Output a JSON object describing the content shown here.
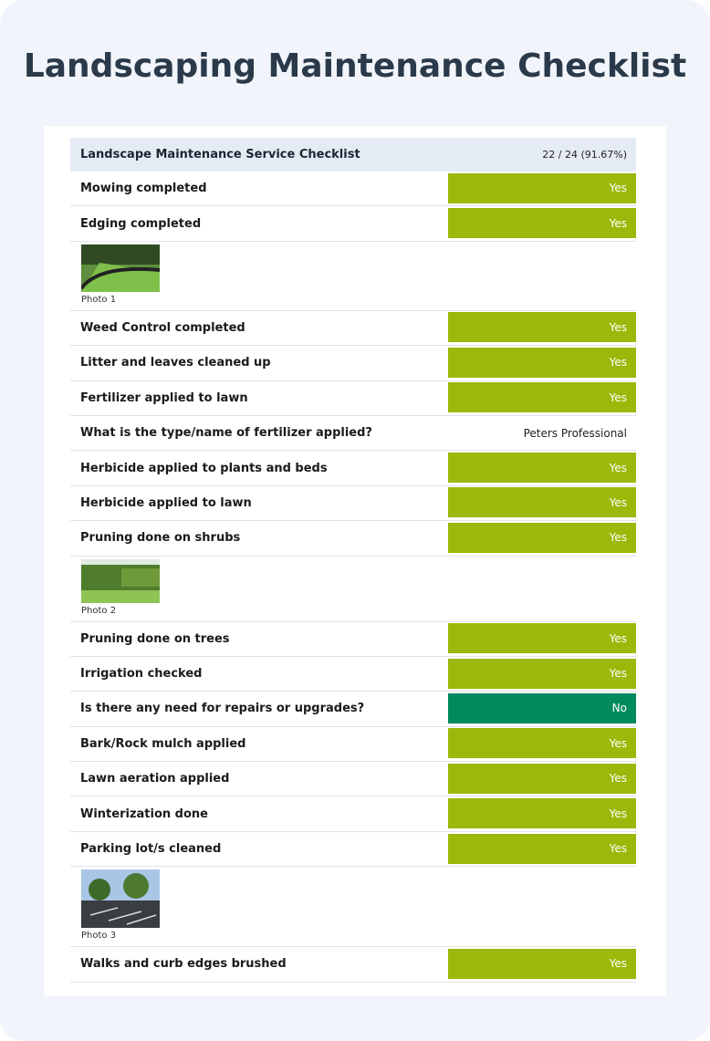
{
  "title": "Landscaping Maintenance Checklist",
  "checklist": {
    "name": "Landscape Maintenance Service Checklist",
    "score": "22 / 24 (91.67%)",
    "items": [
      {
        "label": "Mowing completed",
        "answer": "Yes",
        "color": "#9cb80a"
      },
      {
        "label": "Edging completed",
        "answer": "Yes",
        "color": "#9cb80a",
        "photo": "Photo 1"
      },
      {
        "label": "Weed Control completed",
        "answer": "Yes",
        "color": "#9cb80a"
      },
      {
        "label": "Litter and leaves cleaned up",
        "answer": "Yes",
        "color": "#9cb80a"
      },
      {
        "label": "Fertilizer applied to lawn",
        "answer": "Yes",
        "color": "#9cb80a"
      },
      {
        "label": "What is the type/name of fertilizer applied?",
        "answer": "Peters Professional"
      },
      {
        "label": "Herbicide applied to plants and beds",
        "answer": "Yes",
        "color": "#9cb80a"
      },
      {
        "label": "Herbicide applied to lawn",
        "answer": "Yes",
        "color": "#9cb80a"
      },
      {
        "label": "Pruning done on shrubs",
        "answer": "Yes",
        "color": "#9cb80a",
        "photo": "Photo 2"
      },
      {
        "label": "Pruning done on trees",
        "answer": "Yes",
        "color": "#9cb80a"
      },
      {
        "label": "Irrigation checked",
        "answer": "Yes",
        "color": "#9cb80a"
      },
      {
        "label": "Is there any need for repairs or upgrades?",
        "answer": "No",
        "color": "#008a5e"
      },
      {
        "label": "Bark/Rock mulch applied",
        "answer": "Yes",
        "color": "#9cb80a"
      },
      {
        "label": "Lawn aeration applied",
        "answer": "Yes",
        "color": "#9cb80a"
      },
      {
        "label": "Winterization done",
        "answer": "Yes",
        "color": "#9cb80a"
      },
      {
        "label": "Parking lot/s cleaned",
        "answer": "Yes",
        "color": "#9cb80a",
        "photo": "Photo 3"
      },
      {
        "label": "Walks and curb edges brushed",
        "answer": "Yes",
        "color": "#9cb80a"
      }
    ]
  }
}
